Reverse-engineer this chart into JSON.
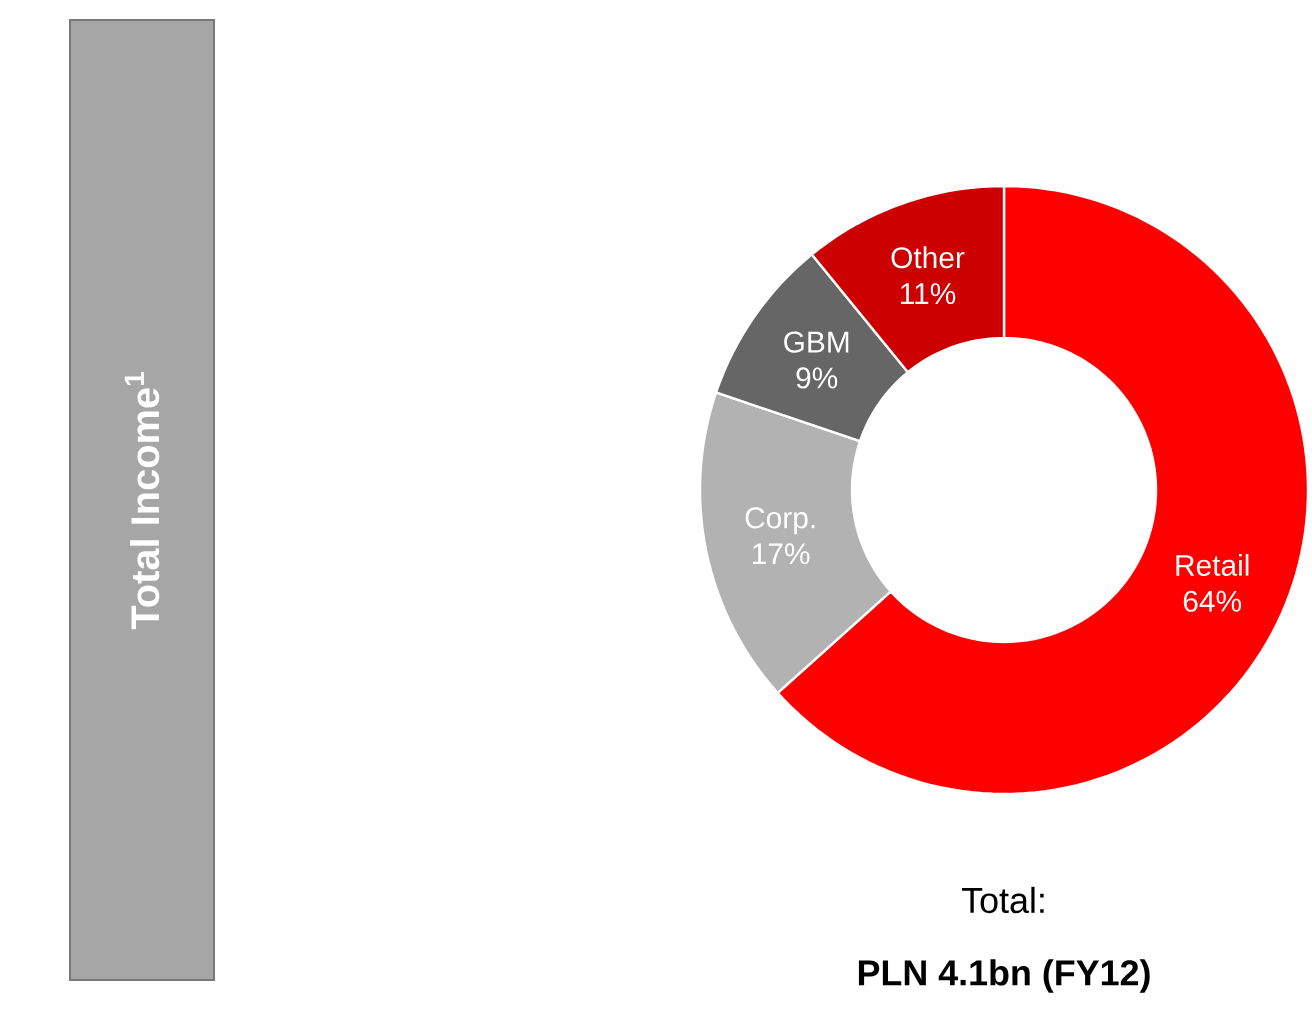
{
  "chart_data": {
    "type": "donut",
    "title": "Total Income$^{1}$",
    "categories": [
      "Retail",
      "Corp.",
      "GBM",
      "Other"
    ],
    "values": [
      64,
      17,
      9,
      11
    ],
    "value_labels": [
      "64%",
      "17%",
      "9%",
      "11%"
    ],
    "colors": [
      "#ff0000",
      "#b2b2b2",
      "#666666",
      "#cc0000"
    ],
    "annotations": [
      "Total:",
      "**PLN 4.1bn (FY12)**"
    ]
  }
}
